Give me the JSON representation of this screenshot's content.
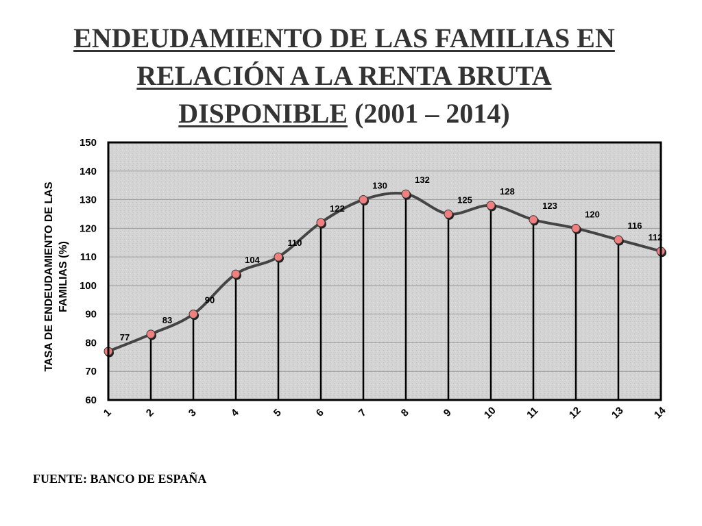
{
  "title": {
    "line1": "ENDEUDAMIENTO DE LAS FAMILIAS EN",
    "line2": "RELACIÓN A LA RENTA BRUTA",
    "line3_underlined": "DISPONIBLE",
    "line3_rest": " (2001 – 2014)"
  },
  "source": "FUENTE: BANCO DE ESPAÑA",
  "colors": {
    "line": "#444444",
    "marker": "#f08080",
    "plot_bg": "#d4d4d4",
    "grid": "#9a9a9a"
  },
  "chart_data": {
    "type": "line",
    "title": "ENDEUDAMIENTO DE LAS FAMILIAS EN RELACIÓN A LA RENTA BRUTA DISPONIBLE (2001 – 2014)",
    "xlabel": "",
    "ylabel_lines": [
      "TASA DE ENDEUDAMIENTO DE LAS",
      "FAMILIAS (%)"
    ],
    "categories": [
      "1",
      "2",
      "3",
      "4",
      "5",
      "6",
      "7",
      "8",
      "9",
      "10",
      "11",
      "12",
      "13",
      "14"
    ],
    "series": [
      {
        "name": "Tasa de endeudamiento",
        "values": [
          77,
          83,
          90,
          104,
          110,
          122,
          130,
          132,
          125,
          128,
          123,
          120,
          116,
          112
        ]
      }
    ],
    "ylim": [
      60,
      150
    ],
    "yticks": [
      60,
      70,
      80,
      90,
      100,
      110,
      120,
      130,
      140,
      150
    ],
    "grid": true,
    "smooth": true,
    "drop_lines": true
  }
}
